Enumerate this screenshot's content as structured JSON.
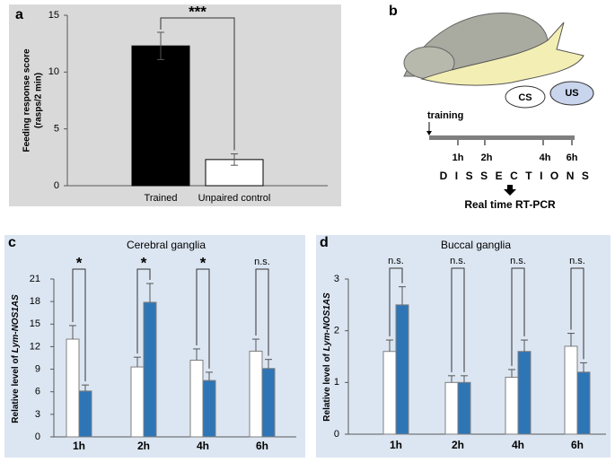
{
  "chart_data": [
    {
      "type": "bar",
      "panel": "a",
      "ylabel": [
        "Feeding response score",
        "(rasps/2 min)"
      ],
      "categories": [
        "Trained",
        "Unpaired  control"
      ],
      "values": [
        12.3,
        2.3
      ],
      "errors": [
        1.2,
        0.5
      ],
      "colors": [
        "#000000",
        "#ffffff"
      ],
      "ylim": [
        0,
        15
      ],
      "yticks": [
        0,
        5,
        10,
        15
      ],
      "significance": [
        "***"
      ]
    },
    {
      "type": "grouped_bar",
      "panel": "c",
      "title": "Cerebral ganglia",
      "ylabel": [
        "Relative level of ",
        "Lym-NOS1AS"
      ],
      "categories": [
        "1h",
        "2h",
        "4h",
        "6h"
      ],
      "series": [
        {
          "color": "#ffffff",
          "values": [
            13.0,
            9.3,
            10.2,
            11.4
          ],
          "errors": [
            1.8,
            1.3,
            1.5,
            1.6
          ]
        },
        {
          "color": "#2e75b6",
          "values": [
            6.1,
            17.9,
            7.5,
            9.1
          ],
          "errors": [
            0.8,
            2.5,
            1.1,
            1.2
          ]
        }
      ],
      "significance": [
        "*",
        "*",
        "*",
        "n.s."
      ],
      "ylim": [
        0,
        21
      ],
      "yticks": [
        0,
        3,
        6,
        9,
        12,
        15,
        18,
        21
      ]
    },
    {
      "type": "grouped_bar",
      "panel": "d",
      "title": "Buccal ganglia",
      "ylabel": [
        "Relative level of ",
        "Lym-NOS1AS"
      ],
      "categories": [
        "1h",
        "2h",
        "4h",
        "6h"
      ],
      "series": [
        {
          "color": "#ffffff",
          "values": [
            1.6,
            1.0,
            1.1,
            1.7
          ],
          "errors": [
            0.22,
            0.13,
            0.15,
            0.25
          ]
        },
        {
          "color": "#2e75b6",
          "values": [
            2.5,
            1.0,
            1.6,
            1.2
          ],
          "errors": [
            0.35,
            0.13,
            0.22,
            0.18
          ]
        }
      ],
      "significance": [
        "n.s.",
        "n.s.",
        "n.s.",
        "n.s."
      ],
      "ylim": [
        0,
        3
      ],
      "yticks": [
        0,
        1,
        2,
        3
      ]
    }
  ],
  "diagram": {
    "panel": "b",
    "stimuli": [
      "CS",
      "US"
    ],
    "training": "training",
    "timepoints": [
      "1h",
      "2h",
      "4h",
      "6h"
    ],
    "stage": "DISSECTIONS",
    "method": "Real time RT-PCR"
  }
}
